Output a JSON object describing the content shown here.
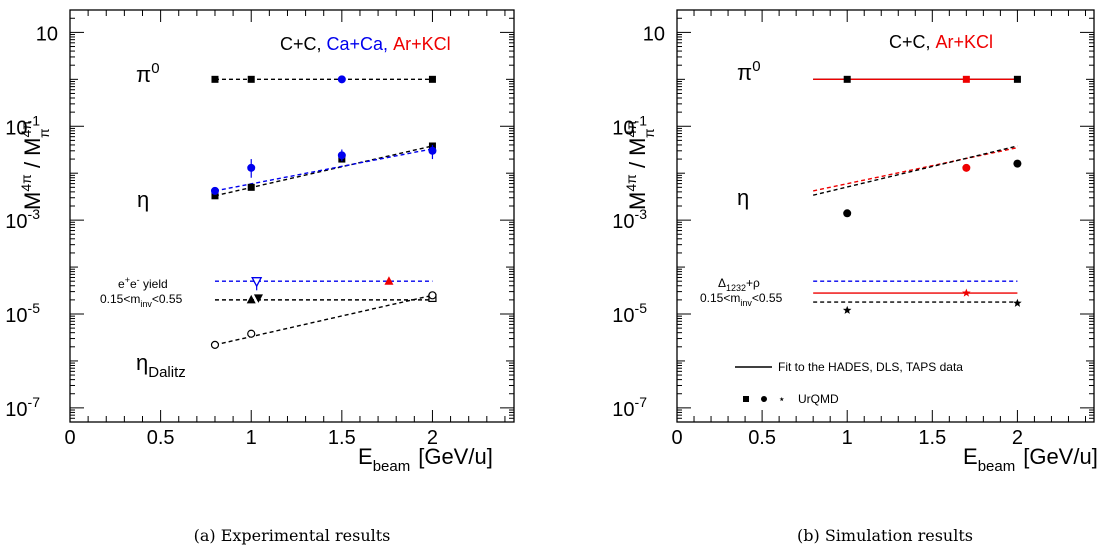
{
  "colors": {
    "black": "#000000",
    "blue": "#0000ee",
    "red": "#ee0000"
  },
  "chart_data": [
    {
      "type": "scatter",
      "panel": "a",
      "caption": "(a) Experimental results",
      "x_axis": {
        "base": "E",
        "sub": "beam",
        "unit": "[GeV/u]",
        "range": [
          0,
          2.45
        ],
        "ticks": [
          "0",
          "0.5",
          "1",
          "1.5",
          "2"
        ],
        "tick_values": [
          0,
          0.5,
          1,
          1.5,
          2
        ]
      },
      "y_axis": {
        "scale": "log",
        "range": [
          5e-08,
          30
        ],
        "ticks": [
          10,
          0.1,
          0.001,
          1e-05,
          1e-07
        ],
        "tick_labels": [
          {
            "b": "10",
            "e": ""
          },
          {
            "b": "10",
            "e": "-1"
          },
          {
            "b": "10",
            "e": "-3"
          },
          {
            "b": "10",
            "e": "-5"
          },
          {
            "b": "10",
            "e": "-7"
          }
        ]
      },
      "ylabel": {
        "m1": "M",
        "s1": "4π",
        "sep": " / M",
        "s2": "4π",
        "sub2": "π"
      },
      "legend": [
        {
          "text": "C+C,",
          "color": "black"
        },
        {
          "text": "Ca+Ca,",
          "color": "blue"
        },
        {
          "text": "Ar+KCl",
          "color": "red"
        }
      ],
      "labels": {
        "pi0": {
          "base": "π",
          "sup": "0"
        },
        "eta": "η",
        "ee": {
          "l1": "e",
          "l1sup1": "+",
          "l1mid": "e",
          "l1sup2": "-",
          "l1end": " yield",
          "l2a": "0.15<m",
          "l2sub": "inv",
          "l2b": "<0.55"
        },
        "eta_dalitz": {
          "base": "η",
          "sub": "Dalitz"
        }
      },
      "lines": [
        {
          "name": "pi0 fit C+C",
          "color": "black",
          "dashed": true,
          "x": [
            0.8,
            2.0
          ],
          "y": [
            1.0,
            1.0
          ]
        },
        {
          "name": "eta fit C+C",
          "color": "black",
          "dashed": true,
          "x": [
            0.8,
            2.0
          ],
          "y": [
            0.0033,
            0.038
          ]
        },
        {
          "name": "eta fit Ca+Ca",
          "color": "blue",
          "dashed": true,
          "x": [
            0.8,
            2.0
          ],
          "y": [
            0.0042,
            0.033
          ]
        },
        {
          "name": "ee fit Ar+KCl",
          "color": "blue",
          "dashed": true,
          "x": [
            0.8,
            2.0
          ],
          "y": [
            5e-05,
            5e-05
          ]
        },
        {
          "name": "ee fit C+C",
          "color": "black",
          "dashed": true,
          "x": [
            0.8,
            2.0
          ],
          "y": [
            2e-05,
            2e-05
          ]
        },
        {
          "name": "eta dalitz fit",
          "color": "black",
          "dashed": true,
          "x": [
            0.8,
            2.0
          ],
          "y": [
            2.2e-06,
            2.5e-05
          ]
        }
      ],
      "points": [
        {
          "color": "black",
          "marker": "square",
          "x": 0.8,
          "y": 1.0
        },
        {
          "color": "black",
          "marker": "square",
          "x": 1.0,
          "y": 1.0
        },
        {
          "color": "blue",
          "marker": "circle",
          "x": 1.5,
          "y": 1.0,
          "err": [
            0.85,
            1.2
          ]
        },
        {
          "color": "black",
          "marker": "square",
          "x": 2.0,
          "y": 1.0
        },
        {
          "color": "black",
          "marker": "square",
          "x": 0.8,
          "y": 0.0033
        },
        {
          "color": "black",
          "marker": "square",
          "x": 1.0,
          "y": 0.005
        },
        {
          "color": "black",
          "marker": "square",
          "x": 1.5,
          "y": 0.02
        },
        {
          "color": "black",
          "marker": "square",
          "x": 2.0,
          "y": 0.038
        },
        {
          "color": "blue",
          "marker": "circle",
          "x": 0.8,
          "y": 0.0042
        },
        {
          "color": "blue",
          "marker": "circle",
          "x": 1.0,
          "y": 0.013,
          "err": [
            0.008,
            0.02
          ]
        },
        {
          "color": "blue",
          "marker": "circle",
          "x": 1.5,
          "y": 0.024,
          "err": [
            0.018,
            0.032
          ]
        },
        {
          "color": "blue",
          "marker": "circle",
          "x": 2.0,
          "y": 0.03,
          "err": [
            0.02,
            0.04
          ]
        },
        {
          "color": "blue",
          "marker": "triangle-down-open",
          "x": 1.03,
          "y": 5e-05,
          "err": [
            3.2e-05,
            6e-05
          ]
        },
        {
          "color": "red",
          "marker": "triangle-up",
          "x": 1.76,
          "y": 5e-05
        },
        {
          "color": "black",
          "marker": "triangle-up",
          "x": 1.0,
          "y": 2e-05
        },
        {
          "color": "black",
          "marker": "triangle-down",
          "x": 1.04,
          "y": 2.2e-05
        },
        {
          "color": "black",
          "marker": "square-open",
          "x": 2.0,
          "y": 2.2e-05
        },
        {
          "color": "black",
          "marker": "circle-open",
          "x": 0.8,
          "y": 2.2e-06
        },
        {
          "color": "black",
          "marker": "circle-open",
          "x": 1.0,
          "y": 3.8e-06
        },
        {
          "color": "black",
          "marker": "circle-open",
          "x": 2.0,
          "y": 2.5e-05
        }
      ]
    },
    {
      "type": "scatter",
      "panel": "b",
      "caption": "(b) Simulation results",
      "x_axis": {
        "base": "E",
        "sub": "beam",
        "unit": "[GeV/u]",
        "range": [
          0,
          2.45
        ],
        "ticks": [
          "0",
          "0.5",
          "1",
          "1.5",
          "2"
        ],
        "tick_values": [
          0,
          0.5,
          1,
          1.5,
          2
        ]
      },
      "y_axis": {
        "scale": "log",
        "range": [
          5e-08,
          30
        ],
        "ticks": [
          10,
          0.1,
          0.001,
          1e-05,
          1e-07
        ],
        "tick_labels": [
          {
            "b": "10",
            "e": ""
          },
          {
            "b": "10",
            "e": "-1"
          },
          {
            "b": "10",
            "e": "-3"
          },
          {
            "b": "10",
            "e": "-5"
          },
          {
            "b": "10",
            "e": "-7"
          }
        ]
      },
      "ylabel": {
        "m1": "M",
        "s1": "4π",
        "sep": " / M",
        "s2": "4π",
        "sub2": "π"
      },
      "legend": [
        {
          "text": "C+C,",
          "color": "black"
        },
        {
          "text": "Ar+KCl",
          "color": "red"
        }
      ],
      "labels": {
        "pi0": {
          "base": "π",
          "sup": "0"
        },
        "eta": "η",
        "delta": {
          "l1a": "Δ",
          "l1sub": "1232",
          "l1b": "+ρ",
          "l2a": "0.15<m",
          "l2sub": "inv",
          "l2b": "<0.55"
        }
      },
      "fit_legend": "Fit to the HADES, DLS, TAPS data",
      "urqmd_legend": "UrQMD",
      "lines": [
        {
          "name": "pi0 fit",
          "color": "black",
          "dashed": false,
          "x": [
            0.8,
            2.0
          ],
          "y": [
            1.0,
            1.0
          ]
        },
        {
          "name": "pi0 fit Ar+KCl",
          "color": "red",
          "dashed": false,
          "x": [
            0.8,
            2.0
          ],
          "y": [
            1.0,
            1.0
          ]
        },
        {
          "name": "eta fit Ar+KCl",
          "color": "red",
          "dashed": true,
          "x": [
            0.8,
            2.0
          ],
          "y": [
            0.0042,
            0.035
          ]
        },
        {
          "name": "eta fit C+C",
          "color": "black",
          "dashed": true,
          "x": [
            0.8,
            2.0
          ],
          "y": [
            0.0034,
            0.038
          ]
        },
        {
          "name": "delta fit Ca+Ca",
          "color": "blue",
          "dashed": true,
          "x": [
            0.8,
            2.0
          ],
          "y": [
            5e-05,
            5e-05
          ]
        },
        {
          "name": "delta fit Ar+KCl",
          "color": "red",
          "dashed": false,
          "x": [
            0.8,
            2.0
          ],
          "y": [
            2.8e-05,
            2.8e-05
          ]
        },
        {
          "name": "delta fit C+C",
          "color": "black",
          "dashed": true,
          "x": [
            0.8,
            2.0
          ],
          "y": [
            1.8e-05,
            1.8e-05
          ]
        }
      ],
      "points": [
        {
          "color": "black",
          "marker": "square",
          "x": 1.0,
          "y": 1.0
        },
        {
          "color": "red",
          "marker": "square",
          "x": 1.7,
          "y": 1.0
        },
        {
          "color": "black",
          "marker": "square",
          "x": 2.0,
          "y": 1.0
        },
        {
          "color": "black",
          "marker": "circle",
          "x": 1.0,
          "y": 0.0014
        },
        {
          "color": "red",
          "marker": "circle",
          "x": 1.7,
          "y": 0.013
        },
        {
          "color": "black",
          "marker": "circle",
          "x": 2.0,
          "y": 0.016
        },
        {
          "color": "black",
          "marker": "star",
          "x": 1.0,
          "y": 1.2e-05
        },
        {
          "color": "red",
          "marker": "star",
          "x": 1.7,
          "y": 2.8e-05
        },
        {
          "color": "black",
          "marker": "star",
          "x": 2.0,
          "y": 1.7e-05
        }
      ]
    }
  ]
}
